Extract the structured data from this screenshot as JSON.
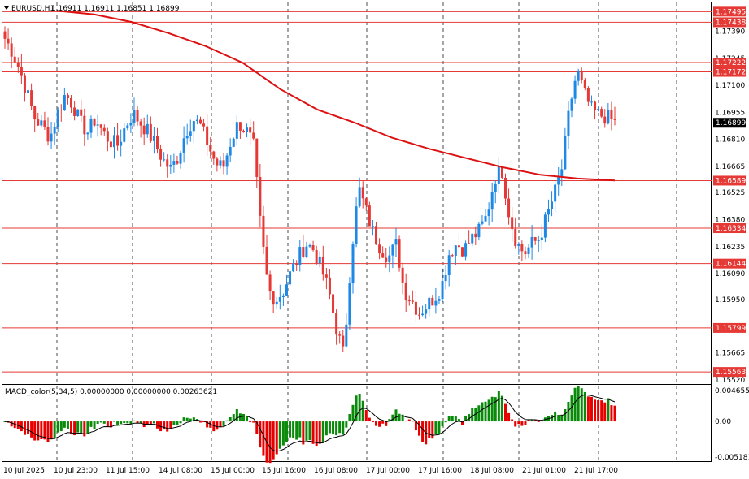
{
  "window": {
    "symbol_header": "EURUSD,H1",
    "ohlc": "1.16911 1.16911 1.16851 1.16899",
    "menu_icon": "triangle-down-icon"
  },
  "macd": {
    "header": "MACD_color(5,34,5) 0.00000000 0.00000000 0.00263621",
    "scale_labels": [
      "0.0046552",
      "0.00",
      "-0.0051812"
    ]
  },
  "colors": {
    "bull": "#1e88e5",
    "bear": "#e53935",
    "level_line": "#e53935",
    "ma_line": "#dd1111",
    "macd_pos": "#0a8a0a",
    "macd_neg": "#e60000",
    "current_price_bg": "#000000"
  },
  "price_scale_labels": [
    "1.17390",
    "1.17245",
    "1.17100",
    "1.16955",
    "1.16810",
    "1.16665",
    "1.16525",
    "1.16380",
    "1.16235",
    "1.16090",
    "1.15950",
    "1.15805",
    "1.15665",
    "1.15520"
  ],
  "horizontal_levels": [
    "1.17495",
    "1.17438",
    "1.17222",
    "1.17172",
    "1.16589",
    "1.16334",
    "1.16144",
    "1.15799",
    "1.15563"
  ],
  "current_price": "1.16899",
  "time_labels": [
    "10 Jul 2025",
    "10 Jul 23:00",
    "11 Jul 15:00",
    "14 Jul 08:00",
    "15 Jul 00:00",
    "15 Jul 16:00",
    "16 Jul 08:00",
    "17 Jul 00:00",
    "17 Jul 16:00",
    "18 Jul 08:00",
    "21 Jul 01:00",
    "21 Jul 17:00"
  ],
  "chart_data": {
    "type": "candlestick",
    "symbol": "EURUSD",
    "timeframe": "H1",
    "ylim": [
      1.1552,
      1.1754
    ],
    "close_path": [
      1.1735,
      1.1728,
      1.1718,
      1.1705,
      1.1692,
      1.1688,
      1.1682,
      1.1695,
      1.1705,
      1.17,
      1.169,
      1.1685,
      1.1692,
      1.1685,
      1.168,
      1.1678,
      1.1688,
      1.1695,
      1.169,
      1.1685,
      1.1678,
      1.167,
      1.1665,
      1.1672,
      1.1685,
      1.1692,
      1.1688,
      1.1678,
      1.1668,
      1.1666,
      1.168,
      1.169,
      1.1686,
      1.1678,
      1.1632,
      1.16,
      1.1595,
      1.16,
      1.161,
      1.1618,
      1.1625,
      1.1622,
      1.1612,
      1.16,
      1.158,
      1.1565,
      1.162,
      1.1655,
      1.1642,
      1.163,
      1.1622,
      1.1618,
      1.1625,
      1.16,
      1.1595,
      1.1588,
      1.1592,
      1.1596,
      1.1602,
      1.162,
      1.1625,
      1.1622,
      1.1628,
      1.1632,
      1.164,
      1.166,
      1.1665,
      1.164,
      1.1625,
      1.162,
      1.1625,
      1.1628,
      1.164,
      1.1652,
      1.1666,
      1.1698,
      1.1718,
      1.1705,
      1.1696,
      1.1694,
      1.1693,
      1.169
    ],
    "moving_average": [
      1.175,
      1.1748,
      1.1744,
      1.1738,
      1.1731,
      1.1722,
      1.1708,
      1.1697,
      1.169,
      1.1682,
      1.1676,
      1.1671,
      1.1666,
      1.1662,
      1.166,
      1.1659
    ],
    "macd_range": [
      -0.0051812,
      0.0046552
    ]
  }
}
